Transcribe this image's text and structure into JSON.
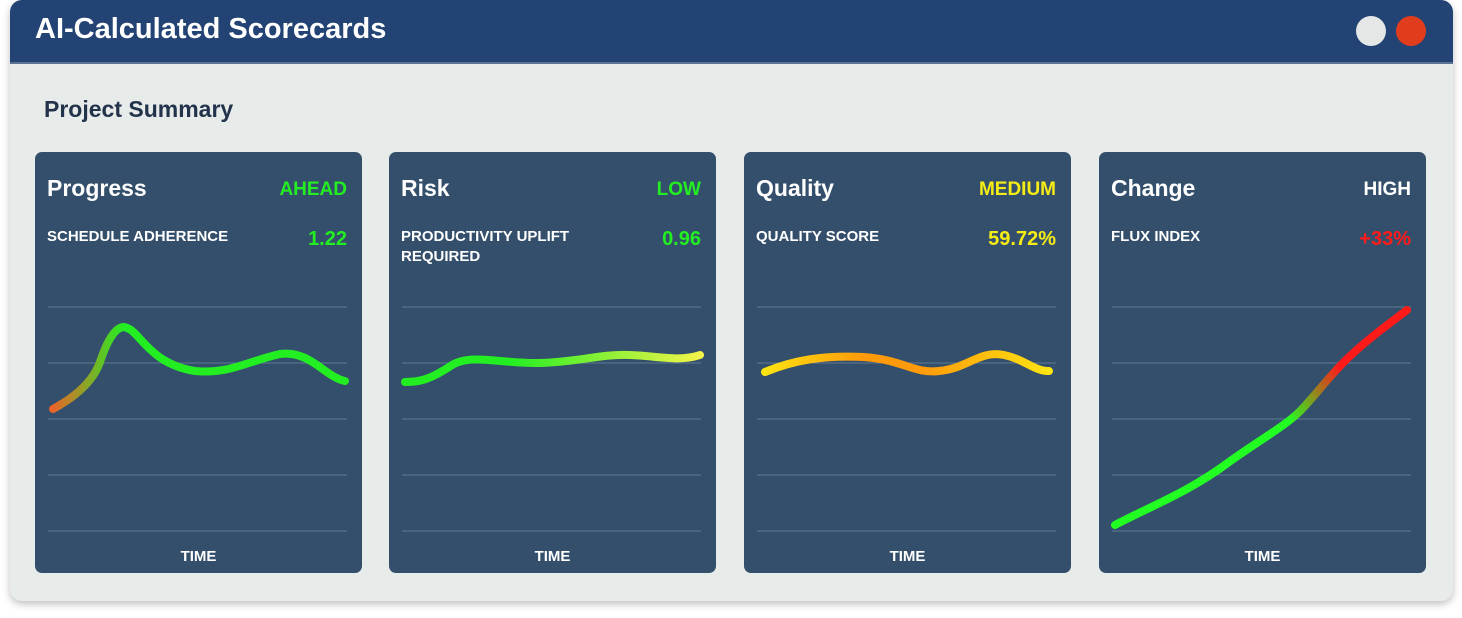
{
  "window": {
    "title": "AI-Calculated Scorecards",
    "controls": [
      "minimize",
      "close"
    ]
  },
  "page": {
    "subtitle": "Project Summary"
  },
  "cards": [
    {
      "title": "Progress",
      "status": "AHEAD",
      "status_color": "#22ee22",
      "metric_label": "SCHEDULE ADHERENCE",
      "metric_value": "1.22",
      "value_color": "#22ee22",
      "x_axis_label": "TIME",
      "trend_colors": [
        "#f0602a",
        "#22ee22"
      ]
    },
    {
      "title": "Risk",
      "status": "LOW",
      "status_color": "#22ee22",
      "metric_label": "PRODUCTIVITY UPLIFT REQUIRED",
      "metric_value": "0.96",
      "value_color": "#22ee22",
      "x_axis_label": "TIME",
      "trend_colors": [
        "#22ee22",
        "#f4f44a"
      ]
    },
    {
      "title": "Quality",
      "status": "MEDIUM",
      "status_color": "#f6ec15",
      "metric_label": "QUALITY SCORE",
      "metric_value": "59.72%",
      "value_color": "#f6ec15",
      "x_axis_label": "TIME",
      "trend_colors": [
        "#ffe812",
        "#ff9a0a"
      ]
    },
    {
      "title": "Change",
      "status": "HIGH",
      "status_color": "#ffffff",
      "metric_label": "FLUX INDEX",
      "metric_value": "+33%",
      "value_color": "#ff1a1a",
      "x_axis_label": "TIME",
      "trend_colors": [
        "#22ff22",
        "#ff1a1a"
      ]
    }
  ]
}
